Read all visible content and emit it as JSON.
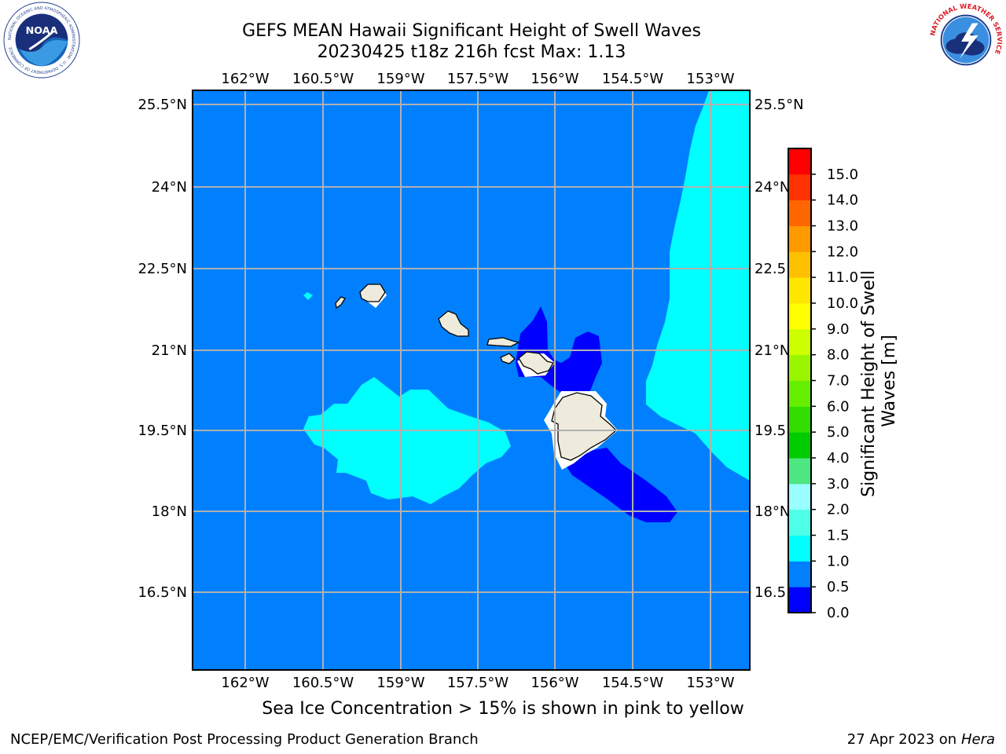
{
  "title": {
    "line1": "GEFS MEAN Hawaii Significant Height of Swell Waves",
    "line2": "20230425 t18z 216h fcst   Max: 1.13"
  },
  "map": {
    "lon_labels": [
      "162°W",
      "160.5°W",
      "159°W",
      "157.5°W",
      "156°W",
      "154.5°W",
      "153°W"
    ],
    "lat_labels": [
      "25.5°N",
      "24°N",
      "22.5°N",
      "21°N",
      "19.5°N",
      "18°N",
      "16.5°N"
    ],
    "background_color": "#0080ff",
    "land_color": "#eeebdc"
  },
  "colorbar": {
    "label": "Significant Height of Swell Waves [m]",
    "ticks": [
      "0.0",
      "0.5",
      "1.0",
      "1.5",
      "2.0",
      "3.0",
      "4.0",
      "5.0",
      "6.0",
      "7.0",
      "8.0",
      "9.0",
      "10.0",
      "11.0",
      "12.0",
      "13.0",
      "14.0",
      "15.0"
    ],
    "colors": [
      "#0000ff",
      "#0080ff",
      "#00ffff",
      "#4dffe6",
      "#99ffff",
      "#4de680",
      "#00cc00",
      "#33dd00",
      "#66ee00",
      "#99f500",
      "#ccff00",
      "#ffff00",
      "#ffe600",
      "#ffc000",
      "#ff9900",
      "#ff6600",
      "#ff3300",
      "#ff0000"
    ]
  },
  "note": "Sea Ice Concentration > 15% is shown in pink to yellow",
  "footer": {
    "left": "NCEP/EMC/Verification Post Processing Product Generation Branch",
    "right_prefix": "27 Apr 2023 on ",
    "right_host": "Hera"
  },
  "logos": {
    "noaa": "NOAA",
    "noaa_ring": "NATIONAL OCEANIC AND ATMOSPHERIC ADMINISTRATION · U.S. DEPARTMENT OF COMMERCE",
    "nws_ring": "NATIONAL WEATHER SERVICE"
  }
}
